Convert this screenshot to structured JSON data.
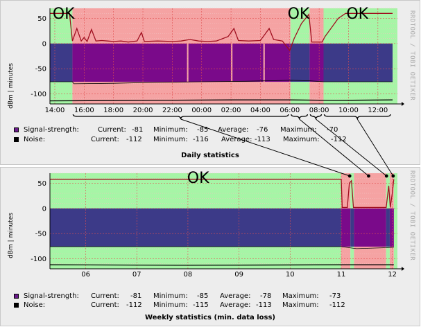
{
  "chart_data": [
    {
      "type": "area",
      "id": "daily",
      "title": "Daily statistics",
      "ylabel": "dBm | minutes",
      "sidebar": "RRDTOOL / TOBI OETIKER",
      "ylim": [
        -120,
        70
      ],
      "yticks": [
        50,
        0,
        -50,
        -100
      ],
      "xlim": [
        13.67,
        37.33
      ],
      "xticks": [
        {
          "h": 14,
          "label": "14:00"
        },
        {
          "h": 16,
          "label": "16:00"
        },
        {
          "h": 18,
          "label": "18:00"
        },
        {
          "h": 20,
          "label": "20:00"
        },
        {
          "h": 22,
          "label": "22:00"
        },
        {
          "h": 24,
          "label": "00:00"
        },
        {
          "h": 26,
          "label": "02:00"
        },
        {
          "h": 28,
          "label": "04:00"
        },
        {
          "h": 30,
          "label": "06:00"
        },
        {
          "h": 32,
          "label": "08:00"
        },
        {
          "h": 34,
          "label": "10:00"
        },
        {
          "h": 36,
          "label": "12:00"
        }
      ],
      "status_bands": [
        {
          "from": 13.67,
          "to": 15.2,
          "state": "ok"
        },
        {
          "from": 15.2,
          "to": 30.05,
          "state": "bad"
        },
        {
          "from": 30.05,
          "to": 31.35,
          "state": "ok"
        },
        {
          "from": 31.35,
          "to": 32.3,
          "state": "bad"
        },
        {
          "from": 32.3,
          "to": 37.33,
          "state": "ok"
        }
      ],
      "ok_labels": [
        {
          "at": 14.6,
          "text": "OK"
        },
        {
          "at": 30.6,
          "text": "OK"
        },
        {
          "at": 34.6,
          "text": "OK"
        }
      ],
      "signal_fill": [
        {
          "from": 13.67,
          "to": 15.2,
          "color": "#3c3a88"
        },
        {
          "from": 15.2,
          "to": 23.0,
          "color": "#7a0a8a"
        },
        {
          "from": 23.1,
          "to": 26.0,
          "color": "#7a0a8a"
        },
        {
          "from": 26.1,
          "to": 28.2,
          "color": "#7a0a8a"
        },
        {
          "from": 28.3,
          "to": 30.05,
          "color": "#7a0a8a"
        },
        {
          "from": 30.05,
          "to": 31.35,
          "color": "#3c3a88"
        },
        {
          "from": 31.35,
          "to": 32.3,
          "color": "#7a0a8a"
        },
        {
          "from": 32.3,
          "to": 37.0,
          "color": "#3c3a88"
        }
      ],
      "signal_line": [
        {
          "h": 13.67,
          "v": -76
        },
        {
          "h": 15.2,
          "v": -76
        },
        {
          "h": 15.3,
          "v": -80
        },
        {
          "h": 18,
          "v": -79
        },
        {
          "h": 21,
          "v": -77
        },
        {
          "h": 24,
          "v": -76
        },
        {
          "h": 27,
          "v": -75
        },
        {
          "h": 30.05,
          "v": -73
        },
        {
          "h": 31.35,
          "v": -74
        },
        {
          "h": 32.3,
          "v": -76
        },
        {
          "h": 37.0,
          "v": -76
        }
      ],
      "minutes_line": [
        {
          "h": 13.67,
          "v": 60
        },
        {
          "h": 15.0,
          "v": 60
        },
        {
          "h": 15.2,
          "v": 5
        },
        {
          "h": 15.5,
          "v": 30
        },
        {
          "h": 15.8,
          "v": 5
        },
        {
          "h": 16.0,
          "v": 12
        },
        {
          "h": 16.2,
          "v": 4
        },
        {
          "h": 16.5,
          "v": 28
        },
        {
          "h": 16.8,
          "v": 5
        },
        {
          "h": 17.2,
          "v": 6
        },
        {
          "h": 17.6,
          "v": 5
        },
        {
          "h": 18.0,
          "v": 4
        },
        {
          "h": 18.5,
          "v": 5
        },
        {
          "h": 19.0,
          "v": 3
        },
        {
          "h": 19.6,
          "v": 5
        },
        {
          "h": 19.9,
          "v": 22
        },
        {
          "h": 20.1,
          "v": 4
        },
        {
          "h": 21.0,
          "v": 5
        },
        {
          "h": 22.0,
          "v": 4
        },
        {
          "h": 22.6,
          "v": 5
        },
        {
          "h": 23.2,
          "v": 8
        },
        {
          "h": 23.8,
          "v": 5
        },
        {
          "h": 24.4,
          "v": 4
        },
        {
          "h": 25.0,
          "v": 5
        },
        {
          "h": 25.8,
          "v": 14
        },
        {
          "h": 26.2,
          "v": 30
        },
        {
          "h": 26.5,
          "v": 6
        },
        {
          "h": 27.2,
          "v": 5
        },
        {
          "h": 28.0,
          "v": 6
        },
        {
          "h": 28.6,
          "v": 30
        },
        {
          "h": 28.9,
          "v": 8
        },
        {
          "h": 29.5,
          "v": 5
        },
        {
          "h": 30.0,
          "v": -14
        },
        {
          "h": 30.3,
          "v": 10
        },
        {
          "h": 30.8,
          "v": 40
        },
        {
          "h": 31.3,
          "v": 58
        },
        {
          "h": 31.5,
          "v": 3
        },
        {
          "h": 32.2,
          "v": 3
        },
        {
          "h": 32.4,
          "v": 14
        },
        {
          "h": 32.8,
          "v": 30
        },
        {
          "h": 33.3,
          "v": 50
        },
        {
          "h": 33.8,
          "v": 60
        },
        {
          "h": 37.0,
          "v": 60
        }
      ],
      "noise_line": [
        {
          "h": 13.67,
          "v": -114
        },
        {
          "h": 20,
          "v": -113
        },
        {
          "h": 26,
          "v": -112
        },
        {
          "h": 30,
          "v": -112
        },
        {
          "h": 33,
          "v": -113
        },
        {
          "h": 37.0,
          "v": -112
        }
      ],
      "legend": {
        "signal": {
          "name": "Signal-strength:",
          "current": "-81",
          "minimum": "-85",
          "average": "-76",
          "maximum": "-70",
          "color": "#6a1b8a"
        },
        "noise": {
          "name": "Noise:",
          "current": "-112",
          "minimum": "-116",
          "average": "-113",
          "maximum": "-112",
          "color": "#000000"
        },
        "current_label": "Current:",
        "minimum_label": "Minimum:",
        "average_label": "Average:",
        "maximum_label": "Maximum:"
      }
    },
    {
      "type": "area",
      "id": "weekly",
      "title": "Weekly statistics (min. data loss)",
      "ylabel": "dBm | minutes",
      "sidebar": "RRDTOOL / TOBI OETIKER",
      "ylim": [
        -120,
        70
      ],
      "yticks": [
        50,
        0,
        -50,
        -100
      ],
      "xlim": [
        5.3,
        12.1
      ],
      "xticks": [
        {
          "d": 6,
          "label": "06"
        },
        {
          "d": 7,
          "label": "07"
        },
        {
          "d": 8,
          "label": "08"
        },
        {
          "d": 9,
          "label": "09"
        },
        {
          "d": 10,
          "label": "10"
        },
        {
          "d": 11,
          "label": "11"
        },
        {
          "d": 12,
          "label": "12"
        }
      ],
      "status_bands": [
        {
          "from": 5.3,
          "to": 11.0,
          "state": "ok"
        },
        {
          "from": 11.0,
          "to": 11.18,
          "state": "bad"
        },
        {
          "from": 11.18,
          "to": 11.25,
          "state": "ok"
        },
        {
          "from": 11.25,
          "to": 11.88,
          "state": "bad"
        },
        {
          "from": 11.88,
          "to": 11.95,
          "state": "ok"
        },
        {
          "from": 11.95,
          "to": 12.03,
          "state": "bad"
        },
        {
          "from": 12.03,
          "to": 12.1,
          "state": "ok"
        }
      ],
      "ok_labels": [
        {
          "at": 8.2,
          "text": "OK"
        }
      ],
      "signal_fill": [
        {
          "from": 5.3,
          "to": 11.0,
          "color": "#3c3a88"
        },
        {
          "from": 11.0,
          "to": 11.18,
          "color": "#7a0a8a"
        },
        {
          "from": 11.18,
          "to": 11.25,
          "color": "#3c3a88"
        },
        {
          "from": 11.25,
          "to": 11.88,
          "color": "#7a0a8a"
        },
        {
          "from": 11.88,
          "to": 11.95,
          "color": "#3c3a88"
        },
        {
          "from": 11.95,
          "to": 12.03,
          "color": "#7a0a8a"
        }
      ],
      "signal_line": [
        {
          "d": 5.3,
          "v": -76
        },
        {
          "d": 11.0,
          "v": -76
        },
        {
          "d": 11.3,
          "v": -80
        },
        {
          "d": 11.88,
          "v": -78
        },
        {
          "d": 12.03,
          "v": -77
        }
      ],
      "minutes_line": [
        {
          "d": 5.3,
          "v": 58
        },
        {
          "d": 11.0,
          "v": 58
        },
        {
          "d": 11.02,
          "v": 2
        },
        {
          "d": 11.12,
          "v": 2
        },
        {
          "d": 11.16,
          "v": 50
        },
        {
          "d": 11.2,
          "v": 55
        },
        {
          "d": 11.24,
          "v": 2
        },
        {
          "d": 11.88,
          "v": 2
        },
        {
          "d": 11.93,
          "v": 45
        },
        {
          "d": 11.96,
          "v": 2
        },
        {
          "d": 12.0,
          "v": 30
        },
        {
          "d": 12.03,
          "v": 58
        }
      ],
      "noise_line": [
        {
          "d": 5.3,
          "v": -112
        },
        {
          "d": 8.0,
          "v": -113
        },
        {
          "d": 11.0,
          "v": -112
        },
        {
          "d": 12.03,
          "v": -112
        }
      ],
      "legend": {
        "signal": {
          "name": "Signal-strength:",
          "current": "-81",
          "minimum": "-85",
          "average": "-78",
          "maximum": "-73",
          "color": "#6a1b8a"
        },
        "noise": {
          "name": "Noise:",
          "current": "-112",
          "minimum": "-115",
          "average": "-113",
          "maximum": "-112",
          "color": "#000000"
        },
        "current_label": "Current:",
        "minimum_label": "Minimum:",
        "average_label": "Average:",
        "maximum_label": "Maximum:"
      }
    }
  ],
  "annotation_links": [
    {
      "daily_from": 15.2,
      "daily_to": 30.05,
      "weekly_at": 11.18
    },
    {
      "daily_from": 30.05,
      "daily_to": 31.35,
      "weekly_at": 11.55
    },
    {
      "daily_from": 31.35,
      "daily_to": 32.3,
      "weekly_at": 11.9
    },
    {
      "daily_from": 32.3,
      "daily_to": 37.0,
      "weekly_at": 12.03
    }
  ],
  "colors": {
    "ok": "#a6f5a6",
    "bad": "#f5a3a3",
    "minutes": "#a01020",
    "noise": "#000000",
    "grid_major": "#e05050",
    "grid_minor": "#f2c0c0"
  }
}
